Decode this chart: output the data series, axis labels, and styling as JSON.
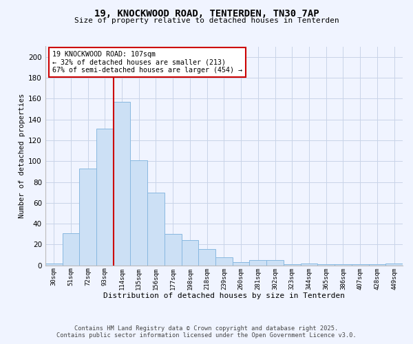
{
  "title": "19, KNOCKWOOD ROAD, TENTERDEN, TN30 7AP",
  "subtitle": "Size of property relative to detached houses in Tenterden",
  "xlabel": "Distribution of detached houses by size in Tenterden",
  "ylabel": "Number of detached properties",
  "bar_labels": [
    "30sqm",
    "51sqm",
    "72sqm",
    "93sqm",
    "114sqm",
    "135sqm",
    "156sqm",
    "177sqm",
    "198sqm",
    "218sqm",
    "239sqm",
    "260sqm",
    "281sqm",
    "302sqm",
    "323sqm",
    "344sqm",
    "365sqm",
    "386sqm",
    "407sqm",
    "428sqm",
    "449sqm"
  ],
  "bar_values": [
    2,
    31,
    93,
    131,
    157,
    101,
    70,
    30,
    24,
    16,
    8,
    3,
    5,
    5,
    1,
    2,
    1,
    1,
    1,
    1,
    2
  ],
  "bar_color": "#cce0f5",
  "bar_edge_color": "#88b8e0",
  "vline_color": "#cc0000",
  "annotation_text": "19 KNOCKWOOD ROAD: 107sqm\n← 32% of detached houses are smaller (213)\n67% of semi-detached houses are larger (454) →",
  "annotation_box_color": "#ffffff",
  "annotation_box_edge_color": "#cc0000",
  "ylim": [
    0,
    210
  ],
  "yticks": [
    0,
    20,
    40,
    60,
    80,
    100,
    120,
    140,
    160,
    180,
    200
  ],
  "background_color": "#f0f4ff",
  "grid_color": "#c8d4e8",
  "footer_line1": "Contains HM Land Registry data © Crown copyright and database right 2025.",
  "footer_line2": "Contains public sector information licensed under the Open Government Licence v3.0."
}
